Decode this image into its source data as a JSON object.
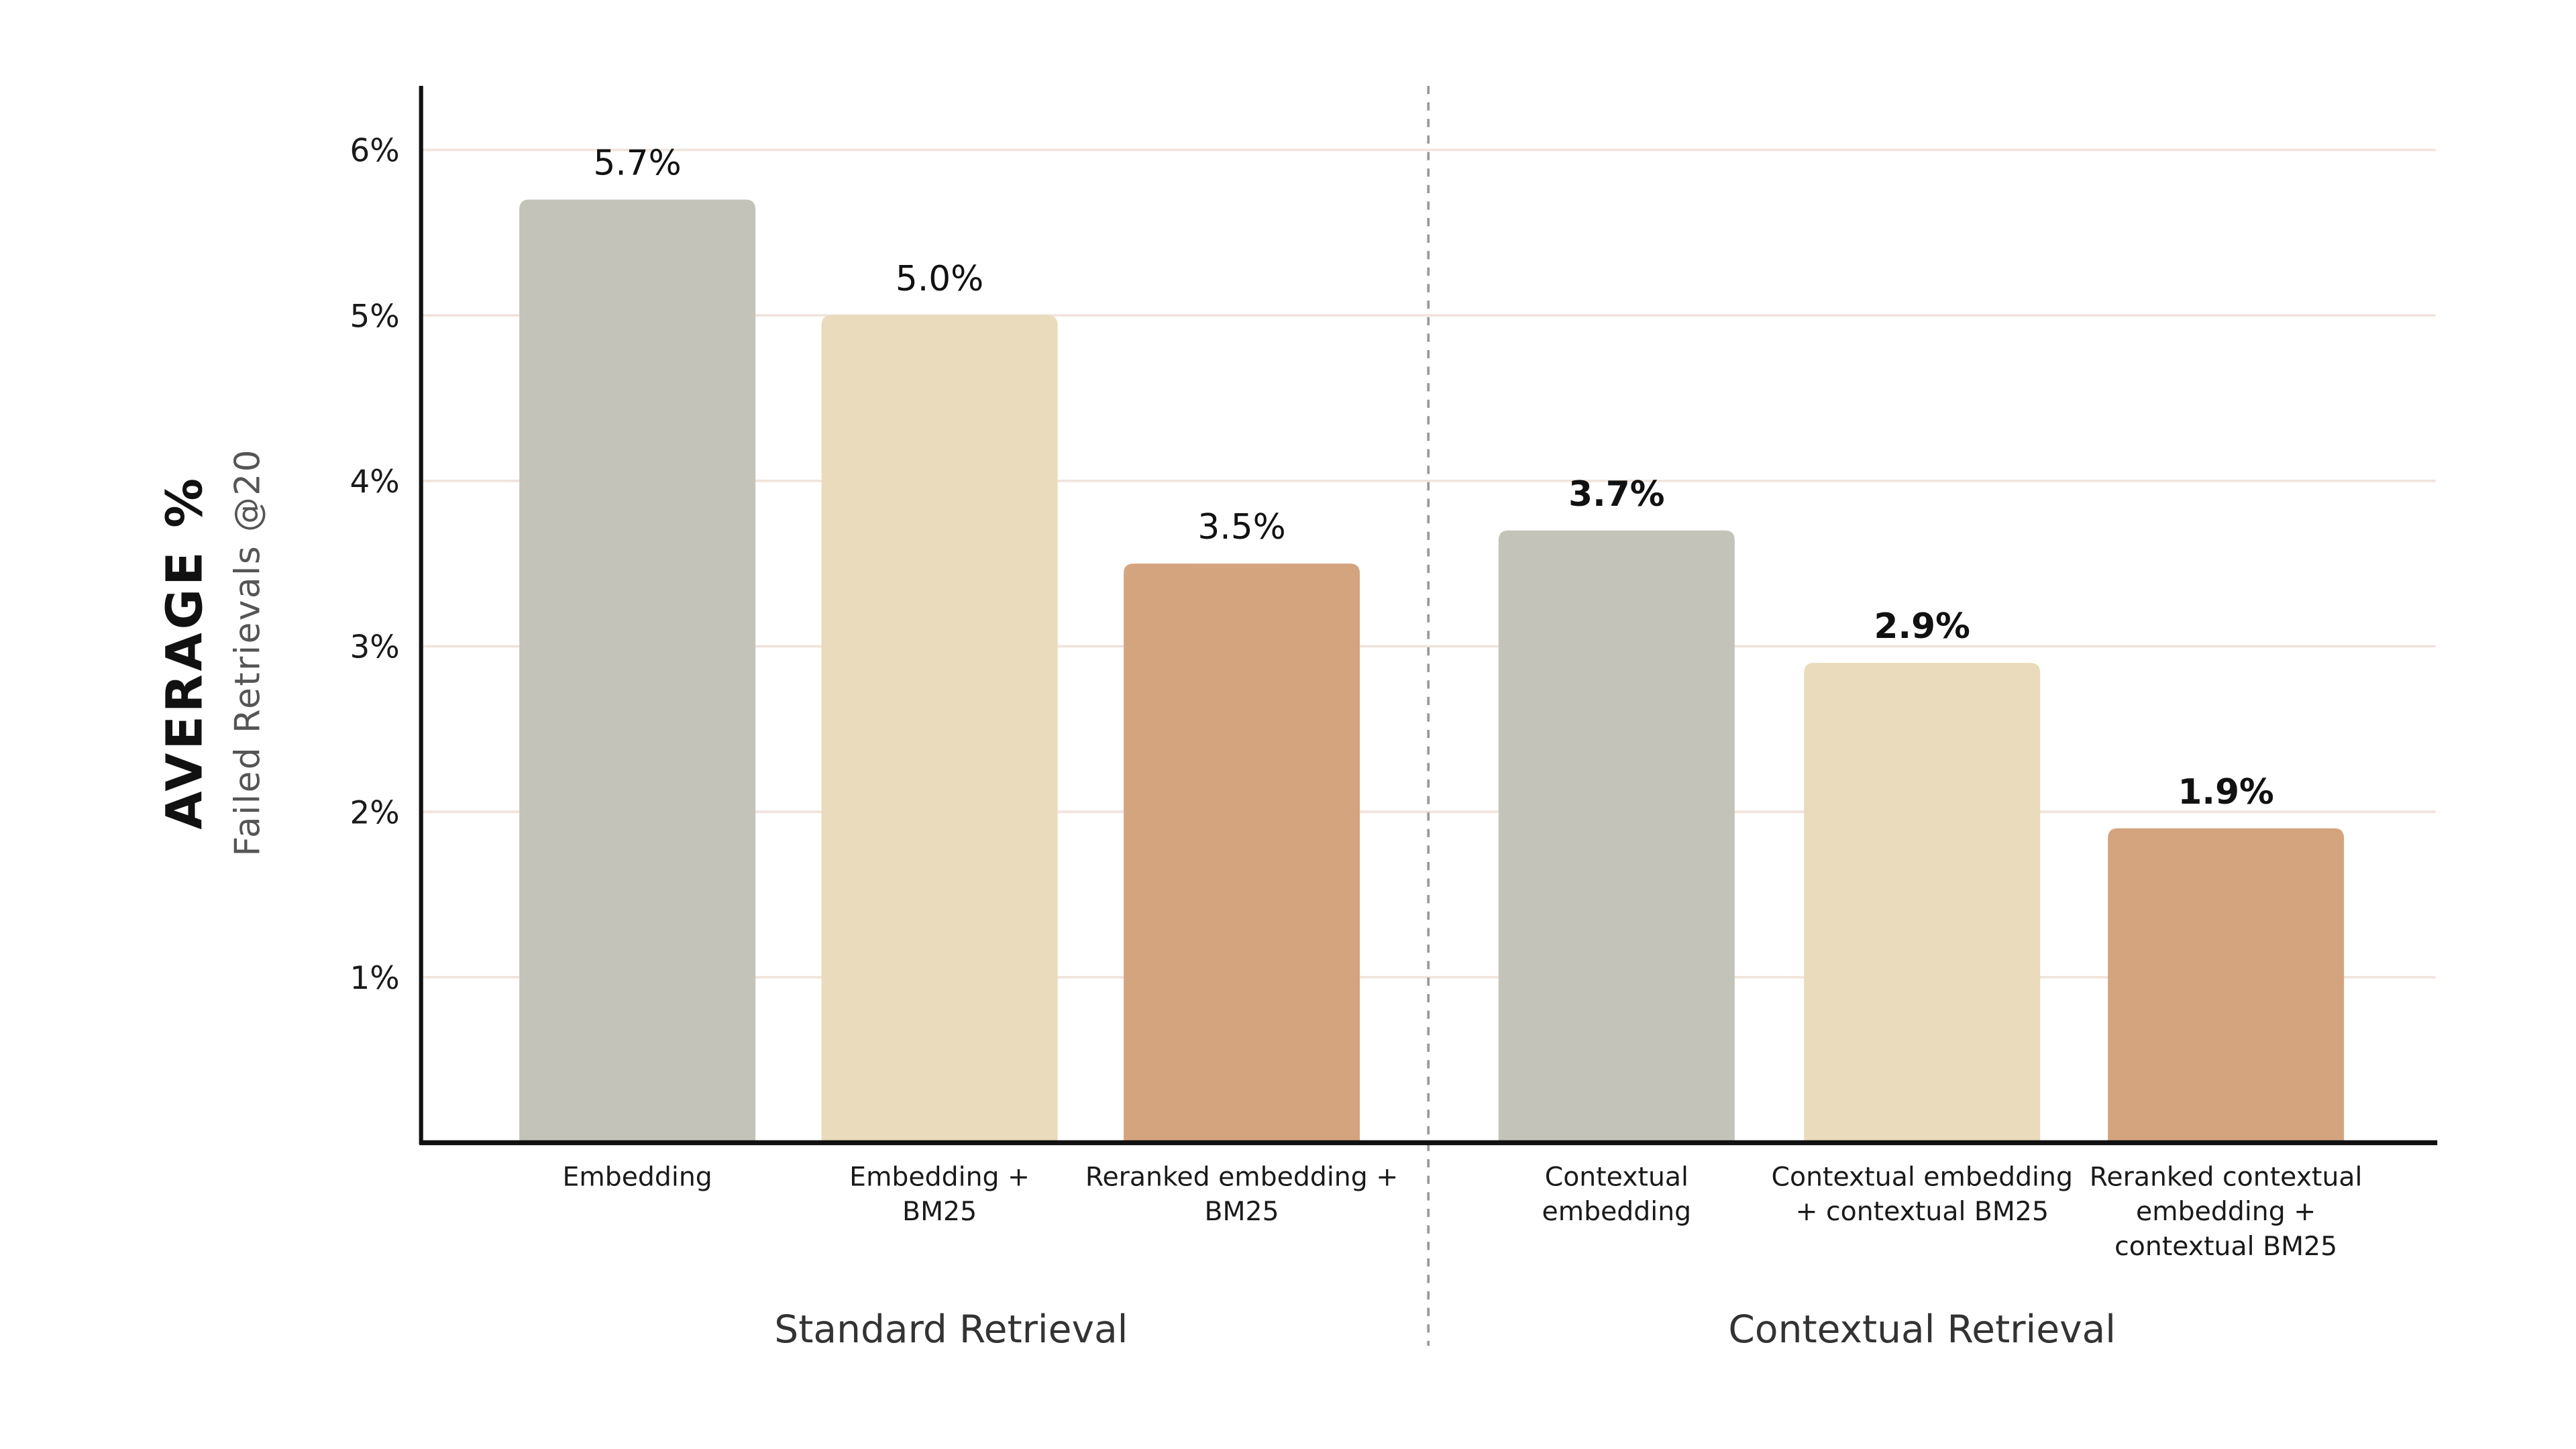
{
  "chart_data": {
    "type": "bar",
    "ylabel": "AVERAGE %",
    "ysublabel": "Failed Retrievals @20",
    "ylim": [
      0,
      6.4
    ],
    "yticks": [
      1,
      2,
      3,
      4,
      5,
      6
    ],
    "ytick_labels": [
      "1%",
      "2%",
      "3%",
      "4%",
      "5%",
      "6%"
    ],
    "grid": true,
    "categories": [
      [
        "Embedding"
      ],
      [
        "Embedding +",
        "BM25"
      ],
      [
        "Reranked embedding +",
        "BM25"
      ],
      [
        "Contextual",
        "embedding"
      ],
      [
        "Contextual embedding",
        "+ contextual BM25"
      ],
      [
        "Reranked contextual",
        "embedding +",
        "contextual BM25"
      ]
    ],
    "values": [
      5.7,
      5.0,
      3.5,
      3.7,
      2.9,
      1.9
    ],
    "data_labels": [
      "5.7%",
      "5.0%",
      "3.5%",
      "3.7%",
      "2.9%",
      "1.9%"
    ],
    "groups": [
      {
        "label": "Standard Retrieval",
        "bars": [
          0,
          1,
          2
        ]
      },
      {
        "label": "Contextual Retrieval",
        "bars": [
          3,
          4,
          5
        ]
      }
    ],
    "bar_colors": [
      "#c3c3b9",
      "#e9dbbb",
      "#d4a47f",
      "#c3c3b9",
      "#e9dbbb",
      "#d4a47f"
    ],
    "grid_color": "#f0e4dc",
    "axis_color": "#111111"
  }
}
